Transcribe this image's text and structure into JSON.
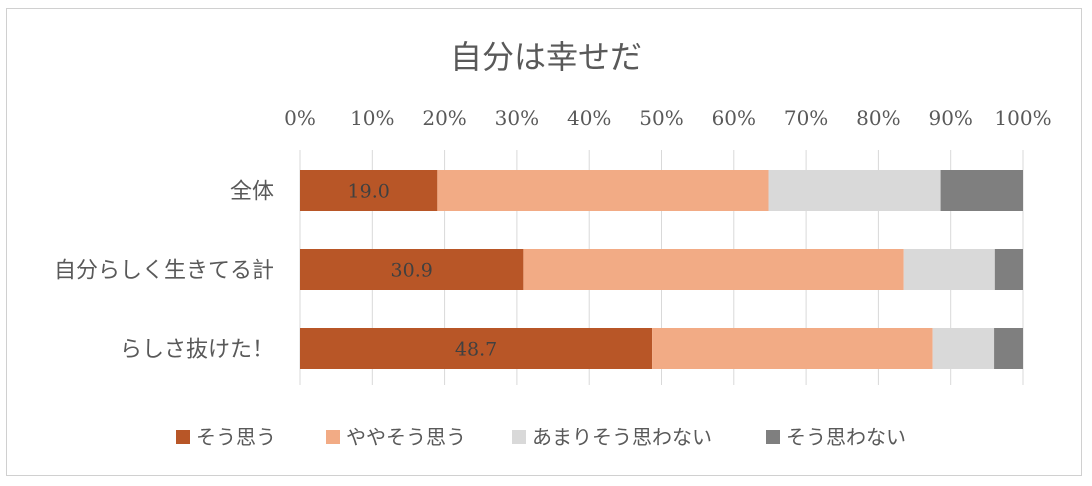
{
  "chart_data": {
    "type": "bar",
    "orientation": "horizontal",
    "stacked": "percent",
    "title": "自分は幸せだ",
    "xlim": [
      0,
      100
    ],
    "x_ticks": [
      "0%",
      "10%",
      "20%",
      "30%",
      "40%",
      "50%",
      "60%",
      "70%",
      "80%",
      "90%",
      "100%"
    ],
    "categories": [
      "全体",
      "自分らしく生きてる計",
      "らしさ抜けた！"
    ],
    "series": [
      {
        "name": "そう思う",
        "color": "#b85627",
        "values": [
          19.0,
          30.9,
          48.7
        ],
        "labels": [
          "19.0",
          "30.9",
          "48.7"
        ]
      },
      {
        "name": "ややそう思う",
        "color": "#f2ab85",
        "values": [
          45.8,
          52.6,
          38.8
        ]
      },
      {
        "name": "あまりそう思わない",
        "color": "#d9d9d9",
        "values": [
          23.8,
          12.6,
          8.5
        ]
      },
      {
        "name": "そう思わない",
        "color": "#7f7f7f",
        "values": [
          11.4,
          3.9,
          4.0
        ]
      }
    ],
    "grid": "vertical",
    "axis_position": "top",
    "legend_position": "bottom"
  }
}
